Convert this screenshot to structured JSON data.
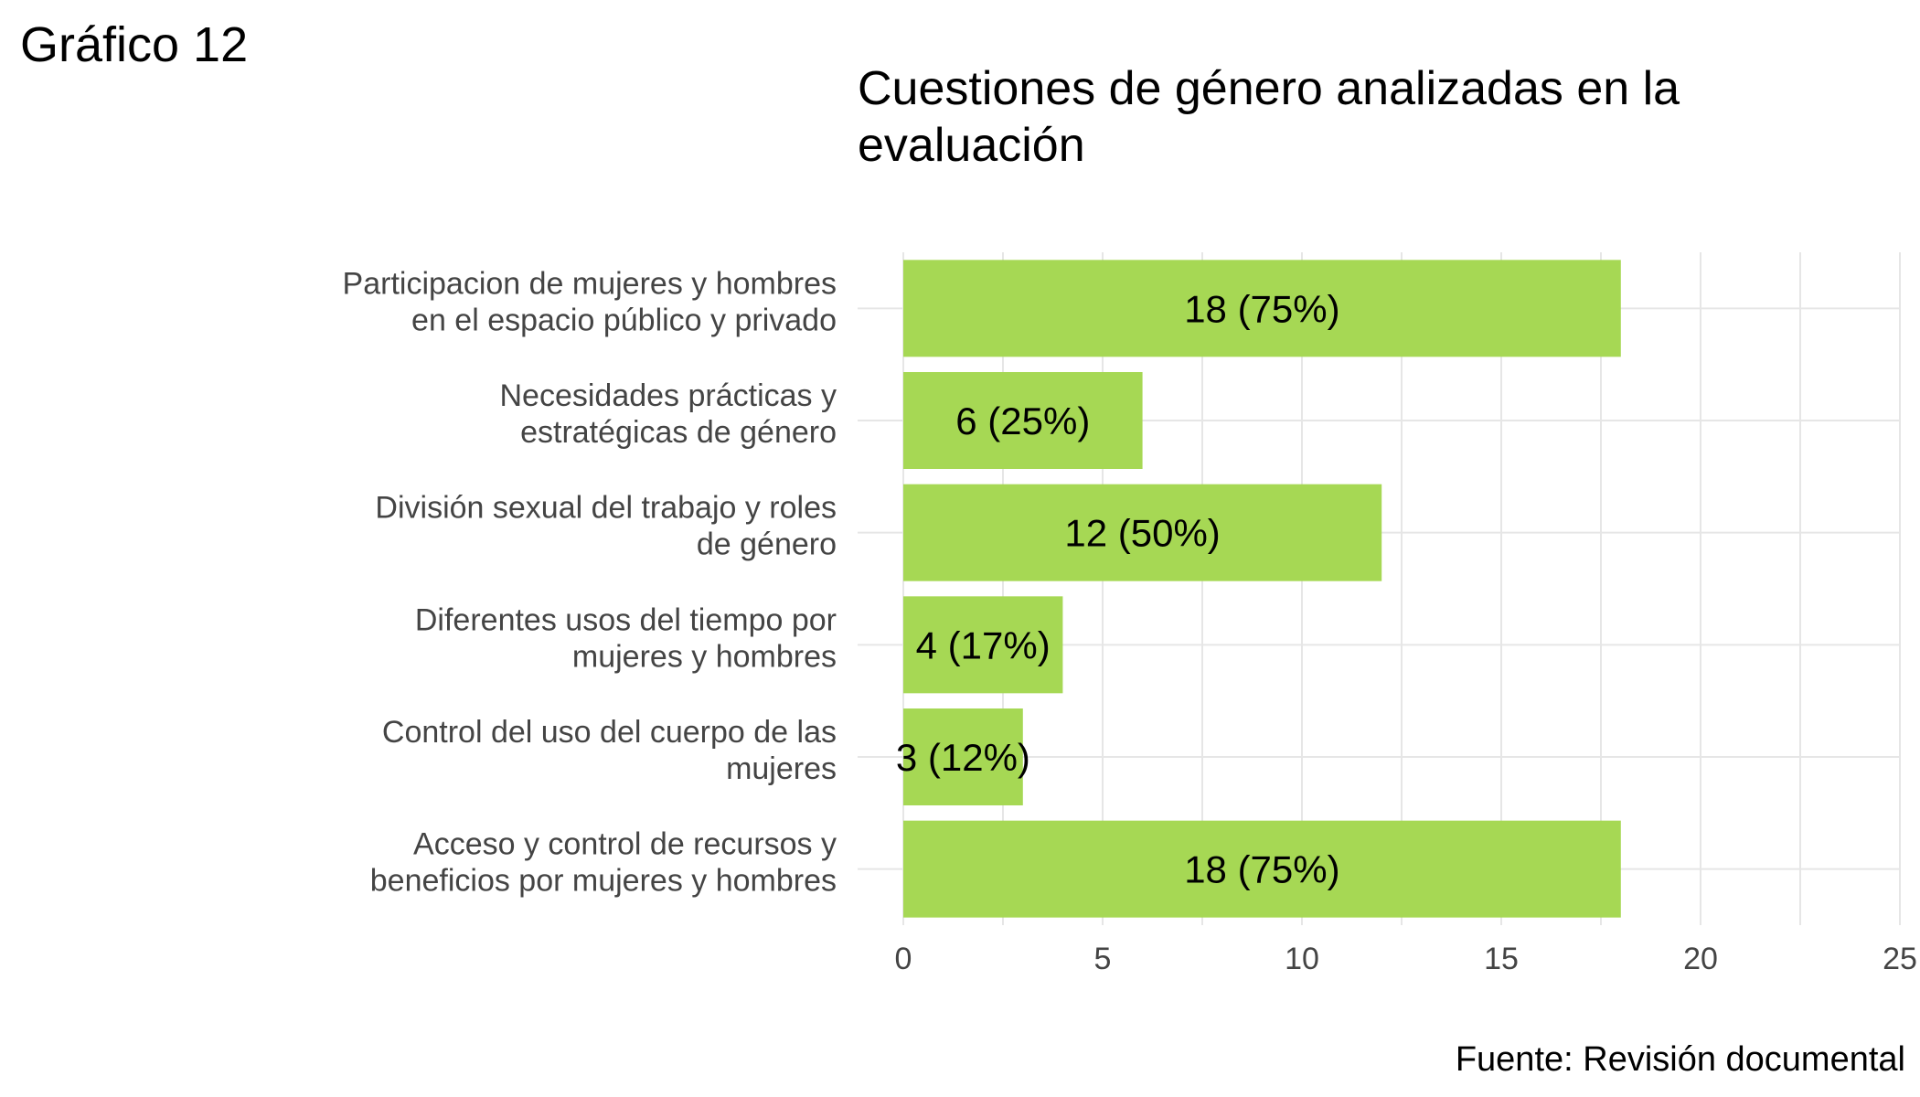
{
  "figure_label": "Gráfico 12",
  "source": "Fuente: Revisión documental",
  "chart_data": {
    "type": "bar",
    "orientation": "horizontal",
    "title": "Cuestiones de género analizadas en la evaluación",
    "title_lines": [
      "Cuestiones de género analizadas en la",
      "evaluación"
    ],
    "categories": [
      "Participacion de mujeres y hombres en el espacio público y privado",
      "Necesidades prácticas y estratégicas de género",
      "División sexual del trabajo y roles de género",
      "Diferentes usos del tiempo por mujeres y hombres",
      "Control del uso del cuerpo de las mujeres",
      "Acceso y control de recursos y beneficios por mujeres y hombres"
    ],
    "category_lines": [
      [
        "Participacion de mujeres y hombres",
        "en el espacio público y privado"
      ],
      [
        "Necesidades prácticas y",
        "estratégicas de género"
      ],
      [
        "División sexual del trabajo y roles",
        "de género"
      ],
      [
        "Diferentes usos del tiempo por",
        "mujeres y hombres"
      ],
      [
        "Control del uso del cuerpo de las",
        "mujeres"
      ],
      [
        "Acceso y control de recursos y",
        "beneficios por mujeres y hombres"
      ]
    ],
    "values": [
      18,
      6,
      12,
      4,
      3,
      18
    ],
    "data_labels": [
      "18 (75%)",
      "6 (25%)",
      "12 (50%)",
      "4 (17%)",
      "3 (12%)",
      "18 (75%)"
    ],
    "xlim": [
      0,
      25
    ],
    "xticks": [
      0,
      5,
      10,
      15,
      20,
      25
    ],
    "xlabel": "",
    "ylabel": "",
    "grid": true,
    "colors": {
      "bar": "#a6d854",
      "grid": "#e6e6e6"
    }
  }
}
